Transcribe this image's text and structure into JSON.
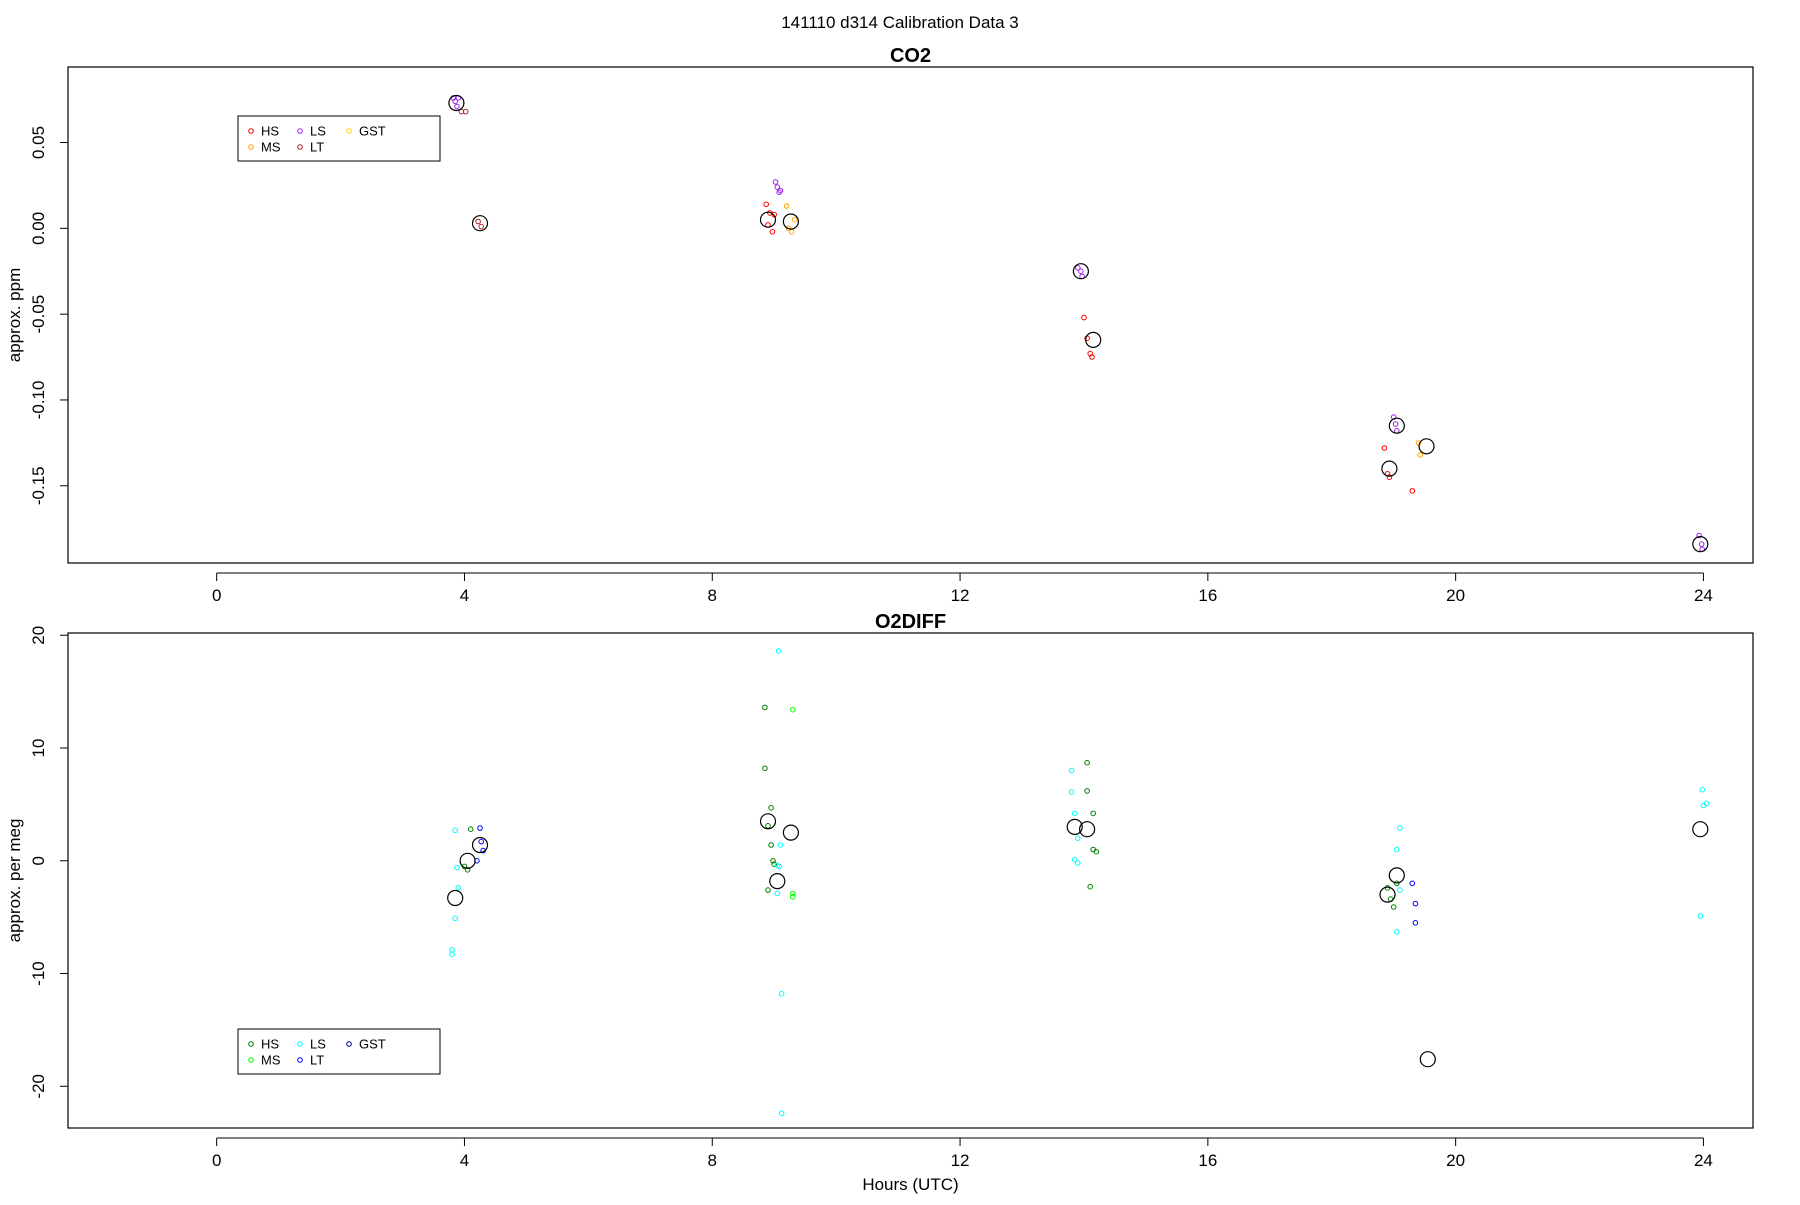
{
  "figure_title": "141110   d314   Calibration Data 3",
  "chart_data": [
    {
      "type": "scatter",
      "title": "CO2",
      "xlabel": "",
      "ylabel": "approx. ppm",
      "xlim": [
        -2.4,
        24.8
      ],
      "ylim": [
        -0.195,
        0.094
      ],
      "xticks": [
        "0",
        "4",
        "8",
        "12",
        "16",
        "20",
        "24"
      ],
      "yticks": [
        "0.05",
        "0.00",
        "-0.05",
        "-0.10",
        "-0.15"
      ],
      "legend": {
        "placement": "top-left",
        "entries": [
          "HS",
          "MS",
          "LS",
          "LT",
          "GST"
        ],
        "colors": [
          "#ff0000",
          "#ffa500",
          "#a020f0",
          "#b22222",
          "#ffd700"
        ]
      },
      "series": [
        {
          "name": "HS",
          "color": "#ff0000",
          "points": [
            [
              8.87,
              0.014
            ],
            [
              8.9,
              0.002
            ],
            [
              8.93,
              0.009
            ],
            [
              8.97,
              -0.002
            ],
            [
              9.0,
              0.008
            ],
            [
              14.0,
              -0.052
            ],
            [
              14.05,
              -0.064
            ],
            [
              14.1,
              -0.073
            ],
            [
              14.13,
              -0.075
            ],
            [
              18.85,
              -0.128
            ],
            [
              18.9,
              -0.143
            ],
            [
              18.93,
              -0.145
            ],
            [
              19.3,
              -0.153
            ]
          ]
        },
        {
          "name": "MS",
          "color": "#ffa500",
          "points": [
            [
              9.2,
              0.013
            ],
            [
              9.23,
              0.0
            ],
            [
              9.28,
              -0.002
            ],
            [
              9.33,
              0.005
            ],
            [
              19.4,
              -0.125
            ],
            [
              19.43,
              -0.132
            ]
          ]
        },
        {
          "name": "LS",
          "color": "#a020f0",
          "points": [
            [
              3.82,
              0.076
            ],
            [
              3.85,
              0.074
            ],
            [
              3.88,
              0.071
            ],
            [
              3.9,
              0.076
            ],
            [
              9.02,
              0.027
            ],
            [
              9.05,
              0.024
            ],
            [
              9.08,
              0.021
            ],
            [
              9.1,
              0.022
            ],
            [
              13.9,
              -0.023
            ],
            [
              13.95,
              -0.025
            ],
            [
              13.97,
              -0.028
            ],
            [
              19.0,
              -0.11
            ],
            [
              19.03,
              -0.114
            ],
            [
              19.05,
              -0.118
            ],
            [
              23.93,
              -0.179
            ],
            [
              23.97,
              -0.184
            ],
            [
              23.98,
              -0.187
            ]
          ]
        },
        {
          "name": "LT",
          "color": "#b22222",
          "points": [
            [
              3.95,
              0.068
            ],
            [
              4.02,
              0.068
            ],
            [
              4.22,
              0.004
            ],
            [
              4.27,
              0.001
            ]
          ]
        },
        {
          "name": "GST",
          "color": "#ffd700",
          "points": []
        },
        {
          "name": "",
          "color": "#000000",
          "marker": "large-open-circle",
          "points": [
            [
              3.87,
              0.073
            ],
            [
              4.25,
              0.003
            ],
            [
              8.9,
              0.005
            ],
            [
              9.27,
              0.004
            ],
            [
              13.95,
              -0.025
            ],
            [
              14.15,
              -0.065
            ],
            [
              18.93,
              -0.14
            ],
            [
              19.05,
              -0.115
            ],
            [
              19.53,
              -0.127
            ],
            [
              23.95,
              -0.184
            ]
          ]
        }
      ]
    },
    {
      "type": "scatter",
      "title": "O2DIFF",
      "xlabel": "Hours (UTC)",
      "ylabel": "approx. per meg",
      "xlim": [
        -2.4,
        24.8
      ],
      "ylim": [
        -23.7,
        20.2
      ],
      "xticks": [
        "0",
        "4",
        "8",
        "12",
        "16",
        "20",
        "24"
      ],
      "yticks": [
        "20",
        "10",
        "0",
        "-10",
        "-20"
      ],
      "legend": {
        "placement": "bottom-left",
        "entries": [
          "HS",
          "MS",
          "LS",
          "LT",
          "GST"
        ],
        "colors": [
          "#008000",
          "#00ff00",
          "#00ffff",
          "#0000ff",
          "#00008b"
        ]
      },
      "series": [
        {
          "name": "HS",
          "color": "#008000",
          "points": [
            [
              4.0,
              -0.5
            ],
            [
              4.05,
              -0.8
            ],
            [
              4.1,
              2.8
            ],
            [
              8.85,
              13.6
            ],
            [
              8.85,
              8.2
            ],
            [
              8.9,
              3.1
            ],
            [
              8.95,
              4.7
            ],
            [
              8.95,
              1.4
            ],
            [
              8.98,
              0.0
            ],
            [
              9.0,
              -0.3
            ],
            [
              8.9,
              -2.6
            ],
            [
              14.05,
              8.7
            ],
            [
              14.05,
              6.2
            ],
            [
              14.15,
              4.2
            ],
            [
              14.15,
              1.0
            ],
            [
              14.2,
              0.8
            ],
            [
              14.1,
              -2.3
            ],
            [
              18.9,
              -2.4
            ],
            [
              18.95,
              -3.4
            ],
            [
              19.0,
              -4.1
            ],
            [
              19.05,
              -2.0
            ]
          ]
        },
        {
          "name": "MS",
          "color": "#00ff00",
          "points": [
            [
              9.3,
              13.4
            ],
            [
              9.3,
              -2.9
            ],
            [
              9.3,
              -3.2
            ]
          ]
        },
        {
          "name": "LS",
          "color": "#00ffff",
          "points": [
            [
              3.85,
              2.7
            ],
            [
              3.88,
              -0.6
            ],
            [
              3.9,
              -2.4
            ],
            [
              3.85,
              -5.1
            ],
            [
              3.8,
              -7.9
            ],
            [
              3.8,
              -8.3
            ],
            [
              9.07,
              18.6
            ],
            [
              9.1,
              1.4
            ],
            [
              9.05,
              -0.4
            ],
            [
              9.08,
              -0.5
            ],
            [
              9.05,
              -2.9
            ],
            [
              9.12,
              -11.8
            ],
            [
              9.12,
              -22.4
            ],
            [
              13.8,
              8.0
            ],
            [
              13.8,
              6.1
            ],
            [
              13.85,
              4.2
            ],
            [
              13.9,
              2.0
            ],
            [
              13.85,
              0.1
            ],
            [
              13.9,
              -0.2
            ],
            [
              19.1,
              2.9
            ],
            [
              19.05,
              1.0
            ],
            [
              19.1,
              -2.6
            ],
            [
              19.05,
              -6.3
            ],
            [
              23.98,
              6.3
            ],
            [
              24.0,
              4.9
            ],
            [
              24.05,
              5.1
            ],
            [
              23.95,
              -4.9
            ]
          ]
        },
        {
          "name": "LT",
          "color": "#0000ff",
          "points": [
            [
              4.25,
              2.9
            ],
            [
              4.27,
              1.7
            ],
            [
              4.3,
              0.9
            ],
            [
              4.2,
              0.0
            ],
            [
              19.3,
              -2.0
            ],
            [
              19.35,
              -3.8
            ],
            [
              19.35,
              -5.5
            ]
          ]
        },
        {
          "name": "GST",
          "color": "#00008b",
          "points": []
        },
        {
          "name": "",
          "color": "#000000",
          "marker": "large-open-circle",
          "points": [
            [
              3.85,
              -3.3
            ],
            [
              4.05,
              0.0
            ],
            [
              4.25,
              1.4
            ],
            [
              8.9,
              3.5
            ],
            [
              9.05,
              -1.8
            ],
            [
              9.27,
              2.5
            ],
            [
              13.85,
              3.0
            ],
            [
              14.05,
              2.8
            ],
            [
              18.9,
              -3.0
            ],
            [
              19.05,
              -1.3
            ],
            [
              19.55,
              -17.6
            ],
            [
              23.95,
              2.8
            ]
          ]
        }
      ]
    }
  ]
}
